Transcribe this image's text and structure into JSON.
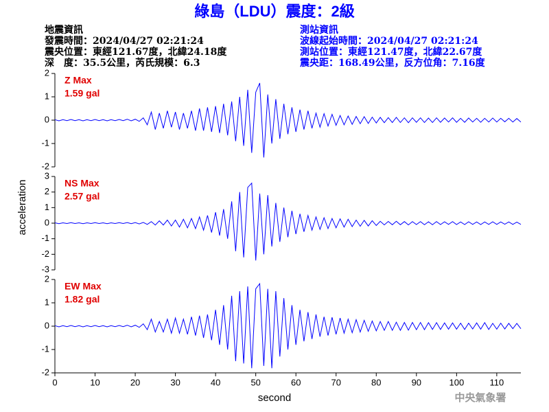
{
  "chart_data": {
    "type": "line",
    "title": "綠島（LDU）震度：2級",
    "info_left": [
      "地震資訊",
      "發震時間：2024/04/27 02:21:24",
      "震央位置：東經121.67度，北緯24.18度",
      "深　度：35.5公里，芮氏規模：6.3"
    ],
    "info_right": [
      "測站資訊",
      "波線起始時間：2024/04/27 02:21:24",
      "測站位置：東經121.47度，北緯22.67度",
      "震央距：168.49公里，反方位角：7.16度"
    ],
    "credit": "中央氣象署",
    "xlabel": "second",
    "ylabel": "acceleration",
    "xlim": [
      0,
      116
    ],
    "xticks": [
      0,
      10,
      20,
      30,
      40,
      50,
      60,
      70,
      80,
      90,
      100,
      110
    ],
    "x": [
      0,
      1,
      2,
      3,
      4,
      5,
      6,
      7,
      8,
      9,
      10,
      11,
      12,
      13,
      14,
      15,
      16,
      17,
      18,
      19,
      20,
      21,
      22,
      23,
      24,
      25,
      26,
      27,
      28,
      29,
      30,
      31,
      32,
      33,
      34,
      35,
      36,
      37,
      38,
      39,
      40,
      41,
      42,
      43,
      44,
      45,
      46,
      47,
      48,
      49,
      50,
      51,
      52,
      53,
      54,
      55,
      56,
      57,
      58,
      59,
      60,
      61,
      62,
      63,
      64,
      65,
      66,
      67,
      68,
      69,
      70,
      71,
      72,
      73,
      74,
      75,
      76,
      77,
      78,
      79,
      80,
      81,
      82,
      83,
      84,
      85,
      86,
      87,
      88,
      89,
      90,
      91,
      92,
      93,
      94,
      95,
      96,
      97,
      98,
      99,
      100,
      101,
      102,
      103,
      104,
      105,
      106,
      107,
      108,
      109,
      110,
      111,
      112,
      113,
      114,
      115,
      116
    ],
    "panels": [
      {
        "name": "Z Max",
        "max_label": "1.59 gal",
        "color": "#0000ff",
        "ylim": [
          -2,
          2
        ],
        "yticks": [
          -2,
          -1,
          0,
          1,
          2
        ],
        "values": [
          0.02,
          -0.03,
          0.02,
          -0.02,
          0.03,
          -0.02,
          0.02,
          -0.03,
          0.02,
          -0.02,
          0.03,
          -0.02,
          0.02,
          -0.03,
          0.02,
          -0.02,
          0.03,
          -0.02,
          0.04,
          -0.03,
          0.04,
          -0.05,
          0.1,
          -0.2,
          0.35,
          -0.4,
          0.3,
          -0.35,
          0.4,
          -0.3,
          0.35,
          -0.4,
          0.3,
          -0.35,
          0.4,
          -0.45,
          0.5,
          -0.45,
          0.55,
          -0.5,
          0.6,
          -0.55,
          0.7,
          -0.65,
          0.8,
          -0.9,
          1.0,
          -1.1,
          1.3,
          -1.4,
          1.2,
          1.59,
          -1.6,
          1.1,
          -1.0,
          0.9,
          -0.8,
          0.7,
          -0.6,
          0.55,
          -0.5,
          0.45,
          -0.4,
          0.4,
          -0.35,
          0.3,
          -0.3,
          0.28,
          -0.25,
          0.25,
          -0.22,
          0.2,
          -0.2,
          0.18,
          -0.18,
          0.16,
          -0.15,
          0.15,
          -0.14,
          0.13,
          -0.12,
          0.12,
          -0.11,
          0.11,
          -0.1,
          0.12,
          -0.1,
          0.1,
          -0.11,
          0.1,
          -0.09,
          0.1,
          -0.1,
          0.09,
          -0.1,
          0.1,
          -0.09,
          0.09,
          -0.08,
          0.1,
          -0.09,
          0.08,
          -0.09,
          0.09,
          -0.08,
          0.08,
          -0.09,
          0.08,
          -0.08,
          0.09,
          -0.08,
          0.08,
          -0.07,
          0.08,
          -0.08,
          0.07,
          -0.08
        ]
      },
      {
        "name": "NS Max",
        "max_label": "2.57 gal",
        "color": "#0000ff",
        "ylim": [
          -3,
          3
        ],
        "yticks": [
          -3,
          -2,
          -1,
          0,
          1,
          2,
          3
        ],
        "values": [
          0.02,
          -0.03,
          0.02,
          -0.02,
          0.03,
          -0.02,
          0.02,
          -0.03,
          0.02,
          -0.02,
          0.03,
          -0.02,
          0.02,
          -0.03,
          0.02,
          -0.02,
          0.03,
          -0.02,
          0.04,
          -0.03,
          0.04,
          -0.05,
          0.05,
          -0.08,
          0.1,
          -0.12,
          0.15,
          -0.12,
          0.2,
          -0.18,
          0.2,
          -0.25,
          0.25,
          -0.3,
          0.3,
          -0.35,
          0.4,
          -0.45,
          0.5,
          -0.6,
          0.7,
          -0.8,
          0.9,
          -1.0,
          1.4,
          -1.8,
          2.0,
          -2.2,
          2.3,
          2.57,
          -2.4,
          1.9,
          -2.0,
          1.8,
          -1.5,
          1.3,
          -1.2,
          1.0,
          -0.9,
          0.8,
          -0.7,
          0.6,
          -0.55,
          0.5,
          -0.45,
          0.4,
          -0.4,
          0.35,
          -0.35,
          0.3,
          -0.3,
          0.28,
          -0.25,
          0.25,
          -0.22,
          0.2,
          -0.2,
          0.18,
          -0.18,
          0.16,
          -0.15,
          0.12,
          -0.11,
          0.11,
          -0.1,
          0.12,
          -0.1,
          0.1,
          -0.11,
          0.1,
          -0.09,
          0.1,
          -0.1,
          0.09,
          -0.1,
          0.1,
          -0.09,
          0.09,
          -0.08,
          0.1,
          -0.09,
          0.08,
          -0.09,
          0.09,
          -0.08,
          0.08,
          -0.09,
          0.08,
          -0.08,
          0.09,
          -0.08,
          0.08,
          -0.07,
          0.08,
          -0.08,
          0.07,
          -0.08
        ]
      },
      {
        "name": "EW Max",
        "max_label": "1.82 gal",
        "color": "#0000ff",
        "ylim": [
          -2,
          2
        ],
        "yticks": [
          -2,
          -1,
          0,
          1,
          2
        ],
        "values": [
          0.02,
          -0.03,
          0.02,
          -0.02,
          0.03,
          -0.02,
          0.02,
          -0.03,
          0.02,
          -0.02,
          0.03,
          -0.02,
          0.02,
          -0.03,
          0.02,
          -0.02,
          0.03,
          -0.02,
          0.04,
          -0.03,
          0.04,
          -0.05,
          0.1,
          -0.15,
          0.3,
          -0.25,
          0.2,
          -0.25,
          0.3,
          -0.3,
          0.35,
          -0.3,
          0.3,
          -0.35,
          0.4,
          -0.4,
          0.45,
          -0.5,
          0.5,
          -0.6,
          0.7,
          -0.8,
          0.9,
          -1.0,
          1.3,
          -1.5,
          1.5,
          -1.6,
          1.7,
          -1.8,
          1.6,
          1.82,
          -1.7,
          1.6,
          -1.8,
          1.5,
          -1.3,
          1.2,
          -1.0,
          0.9,
          -0.8,
          0.7,
          -0.65,
          0.6,
          -0.55,
          0.5,
          -0.45,
          0.4,
          -0.4,
          0.38,
          -0.35,
          0.35,
          -0.3,
          0.3,
          -0.28,
          0.28,
          -0.25,
          0.25,
          -0.22,
          0.22,
          -0.2,
          0.2,
          -0.18,
          0.2,
          -0.18,
          0.17,
          -0.18,
          0.16,
          -0.17,
          0.16,
          -0.15,
          0.16,
          -0.15,
          0.15,
          -0.14,
          0.15,
          -0.14,
          0.14,
          -0.13,
          0.14,
          -0.13,
          0.13,
          -0.14,
          0.13,
          -0.12,
          0.14,
          -0.13,
          0.15,
          -0.14,
          0.12,
          -0.13,
          0.13,
          -0.12,
          0.12,
          -0.11,
          0.12,
          -0.11
        ]
      }
    ]
  }
}
